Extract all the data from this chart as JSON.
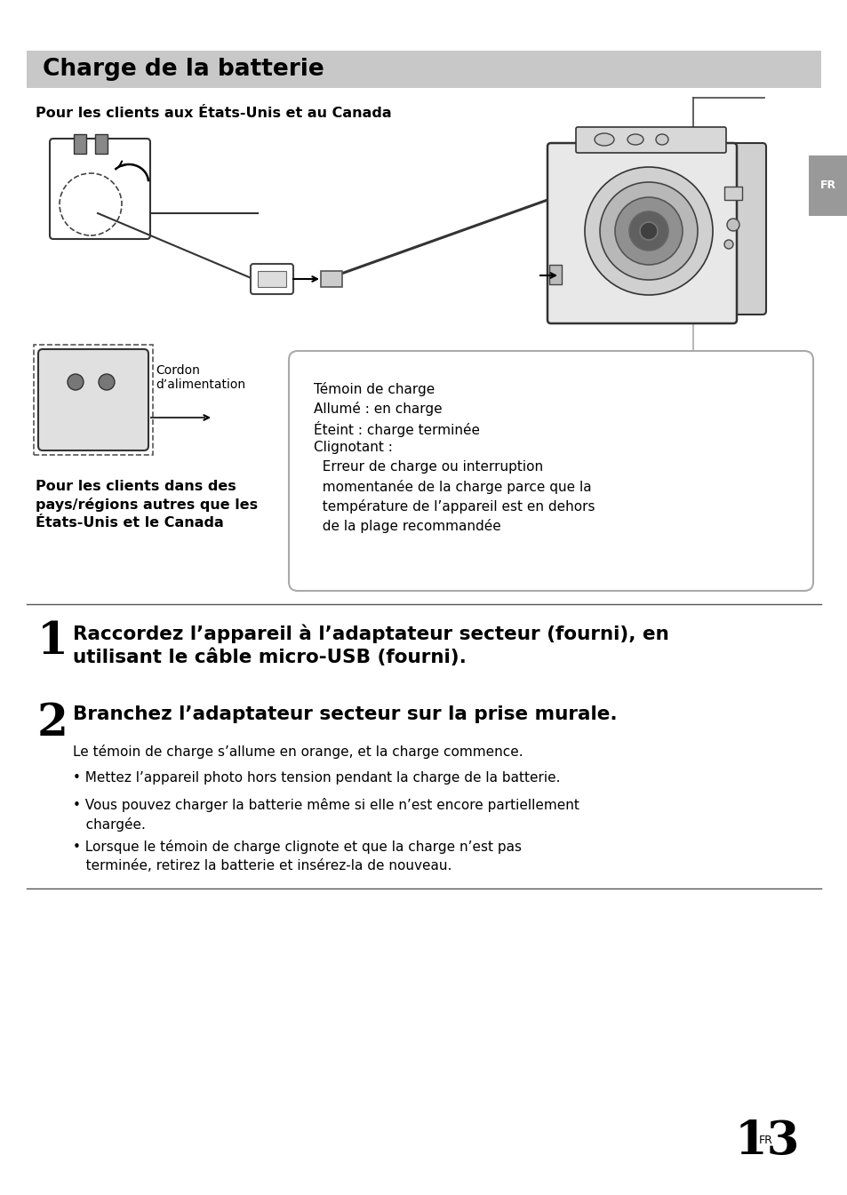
{
  "title": "Charge de la batterie",
  "title_bg": "#c8c8c8",
  "bg_color": "#ffffff",
  "subtitle_us": "Pour les clients aux États-Unis et au Canada",
  "label_cordon": "Cordon\nd’alimentation",
  "box_text_line1": "Témoin de charge",
  "box_text_line2": "Allumé : en charge",
  "box_text_line3": "Éteint : charge terminée",
  "box_text_line4": "Clignotant :",
  "box_text_line5": "  Erreur de charge ou interruption",
  "box_text_line6": "  momentanée de la charge parce que la",
  "box_text_line7": "  température de l’appareil est en dehors",
  "box_text_line8": "  de la plage recommandée",
  "subtitle_other": "Pour les clients dans des\npays/régions autres que les\nÉtats-Unis et le Canada",
  "step1_num": "1",
  "step1_text": "Raccordez l’appareil à l’adaptateur secteur (fourni), en\nutilisant le câble micro-USB (fourni).",
  "step2_num": "2",
  "step2_text": "Branchez l’adaptateur secteur sur la prise murale.",
  "step2_sub": "Le témoin de charge s’allume en orange, et la charge commence.",
  "bullet1": "• Mettez l’appareil photo hors tension pendant la charge de la batterie.",
  "bullet2": "• Vous pouvez charger la batterie même si elle n’est encore partiellement\n   chargée.",
  "bullet3": "• Lorsque le témoin de charge clignote et que la charge n’est pas\n   terminée, retirez la batterie et insérez-la de nouveau.",
  "fr_label": "FR",
  "page_num": "13"
}
